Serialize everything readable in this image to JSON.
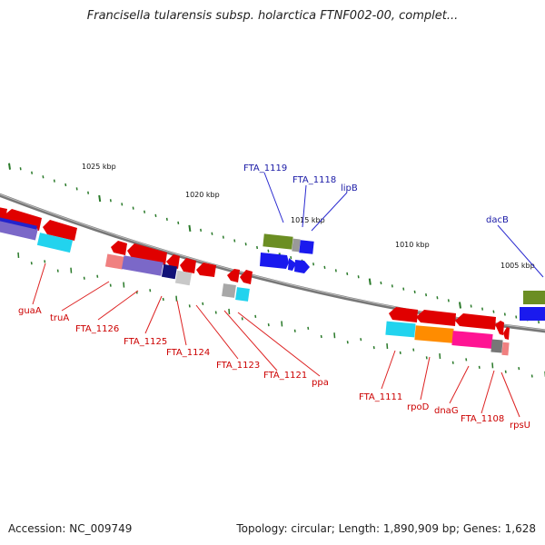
{
  "title": "Francisella tularensis subsp. holarctica FTNF002-00, complet...",
  "footer": {
    "accession": "Accession: NC_009749",
    "summary": "Topology: circular; Length: 1,890,909 bp; Genes: 1,628"
  },
  "ruler_labels": [
    "1025 kbp",
    "1020 kbp",
    "1015 kbp",
    "1010 kbp",
    "1005 kbp"
  ],
  "gene_labels_top": [
    "FTA_1119",
    "FTA_1118",
    "lipB",
    "dacB"
  ],
  "gene_labels_bottom": [
    "guaA",
    "truA",
    "FTA_1126",
    "FTA_1125",
    "FTA_1124",
    "FTA_1123",
    "FTA_1121",
    "ppa",
    "FTA_1111",
    "rpoD",
    "dnaG",
    "FTA_1108",
    "rpsU"
  ],
  "colors": {
    "forward_label": "#1a1aa6",
    "reverse_label": "#cc0000",
    "backbone": "#8a8a8a",
    "tick": "#2a7a2a"
  }
}
